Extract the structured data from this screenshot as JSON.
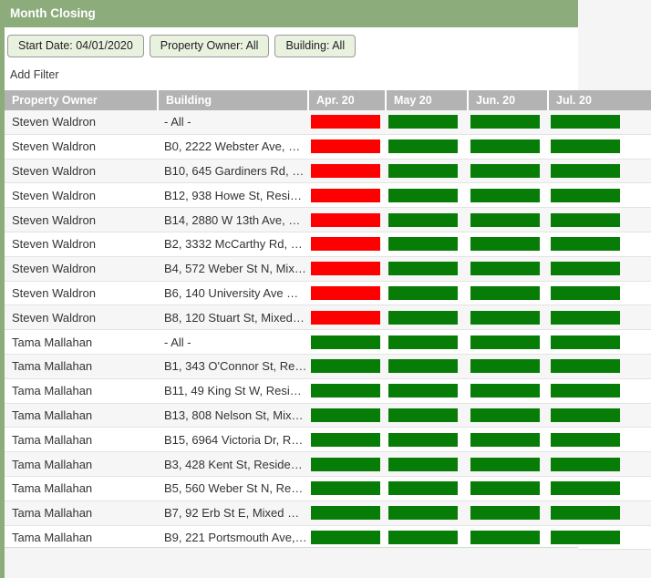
{
  "title": "Month Closing",
  "filters": {
    "chips": [
      {
        "label": "Start Date: 04/01/2020"
      },
      {
        "label": "Property Owner: All"
      },
      {
        "label": "Building: All"
      }
    ],
    "add_filter_label": "Add Filter"
  },
  "table": {
    "columns": [
      "Property Owner",
      "Building",
      "Apr. 20",
      "May 20",
      "Jun. 20",
      "Jul. 20"
    ],
    "rows": [
      {
        "owner": "Steven Waldron",
        "building": "- All -",
        "months": [
          "red",
          "green",
          "green",
          "green"
        ]
      },
      {
        "owner": "Steven Waldron",
        "building": "B0, 2222 Webster Ave, …",
        "months": [
          "red",
          "green",
          "green",
          "green"
        ]
      },
      {
        "owner": "Steven Waldron",
        "building": "B10, 645 Gardiners Rd, …",
        "months": [
          "red",
          "green",
          "green",
          "green"
        ]
      },
      {
        "owner": "Steven Waldron",
        "building": "B12, 938 Howe St, Resi…",
        "months": [
          "red",
          "green",
          "green",
          "green"
        ]
      },
      {
        "owner": "Steven Waldron",
        "building": "B14, 2880 W 13th Ave, …",
        "months": [
          "red",
          "green",
          "green",
          "green"
        ]
      },
      {
        "owner": "Steven Waldron",
        "building": "B2, 3332 McCarthy Rd, …",
        "months": [
          "red",
          "green",
          "green",
          "green"
        ]
      },
      {
        "owner": "Steven Waldron",
        "building": "B4, 572 Weber St N, Mix…",
        "months": [
          "red",
          "green",
          "green",
          "green"
        ]
      },
      {
        "owner": "Steven Waldron",
        "building": "B6, 140 University Ave …",
        "months": [
          "red",
          "green",
          "green",
          "green"
        ]
      },
      {
        "owner": "Steven Waldron",
        "building": "B8, 120 Stuart St, Mixed…",
        "months": [
          "red",
          "green",
          "green",
          "green"
        ]
      },
      {
        "owner": "Tama Mallahan",
        "building": "- All -",
        "months": [
          "green",
          "green",
          "green",
          "green"
        ]
      },
      {
        "owner": "Tama Mallahan",
        "building": "B1, 343 O'Connor St, Re…",
        "months": [
          "green",
          "green",
          "green",
          "green"
        ]
      },
      {
        "owner": "Tama Mallahan",
        "building": "B11, 49 King St W, Resi…",
        "months": [
          "green",
          "green",
          "green",
          "green"
        ]
      },
      {
        "owner": "Tama Mallahan",
        "building": "B13, 808 Nelson St, Mix…",
        "months": [
          "green",
          "green",
          "green",
          "green"
        ]
      },
      {
        "owner": "Tama Mallahan",
        "building": "B15, 6964 Victoria Dr, R…",
        "months": [
          "green",
          "green",
          "green",
          "green"
        ]
      },
      {
        "owner": "Tama Mallahan",
        "building": "B3, 428 Kent St, Reside…",
        "months": [
          "green",
          "green",
          "green",
          "green"
        ]
      },
      {
        "owner": "Tama Mallahan",
        "building": "B5, 560 Weber St N, Re…",
        "months": [
          "green",
          "green",
          "green",
          "green"
        ]
      },
      {
        "owner": "Tama Mallahan",
        "building": "B7, 92 Erb St E, Mixed …",
        "months": [
          "green",
          "green",
          "green",
          "green"
        ]
      },
      {
        "owner": "Tama Mallahan",
        "building": "B9, 221 Portsmouth Ave,…",
        "months": [
          "green",
          "green",
          "green",
          "green"
        ]
      }
    ]
  },
  "colors": {
    "red": "#ff0000",
    "green": "#077c07",
    "title_bar": "#8dac7c",
    "header_bg": "#b3b3b3",
    "chip_bg": "#e9f1df",
    "chip_border": "#999999"
  }
}
